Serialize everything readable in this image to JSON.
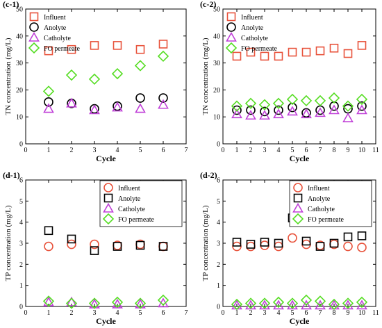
{
  "figure": {
    "colors": {
      "influent": "#e8533c",
      "anolyte": "#000000",
      "catholyte": "#c040d8",
      "fo_permeate": "#55dd22"
    }
  },
  "chart_data": [
    {
      "id": "c-1",
      "panel_label": "(c-1)",
      "type": "scatter",
      "xlabel": "Cycle",
      "ylabel": "TN concentration (mg/L)",
      "xlim": [
        0,
        7
      ],
      "ylim": [
        0,
        50
      ],
      "xticks": [
        0,
        1,
        2,
        3,
        4,
        5,
        6,
        7
      ],
      "yticks": [
        0,
        10,
        20,
        30,
        40,
        50
      ],
      "legend": {
        "position": "top-left",
        "entries": [
          "Influent",
          "Anolyte",
          "Catholyte",
          "FO permeate"
        ]
      },
      "x": [
        1,
        2,
        3,
        4,
        5,
        6
      ],
      "series": [
        {
          "name": "Influent",
          "marker": "square",
          "color": "#e8533c",
          "values": [
            34.5,
            35,
            36.5,
            36.5,
            35,
            37
          ]
        },
        {
          "name": "Anolyte",
          "marker": "circle",
          "color": "#000000",
          "values": [
            15.5,
            15,
            13,
            14,
            17,
            17
          ]
        },
        {
          "name": "Catholyte",
          "marker": "triangle",
          "color": "#c040d8",
          "values": [
            13,
            15,
            12.5,
            13.5,
            13,
            14.5
          ]
        },
        {
          "name": "FO permeate",
          "marker": "diamond",
          "color": "#55dd22",
          "values": [
            19.5,
            25.5,
            24,
            26,
            29,
            32.5
          ]
        }
      ]
    },
    {
      "id": "c-2",
      "panel_label": "(c-2)",
      "type": "scatter",
      "xlabel": "Cycle",
      "ylabel": "TN concentration (mg/L)",
      "xlim": [
        0,
        11
      ],
      "ylim": [
        0,
        50
      ],
      "xticks": [
        0,
        1,
        2,
        3,
        4,
        5,
        6,
        7,
        8,
        9,
        10,
        11
      ],
      "yticks": [
        0,
        10,
        20,
        30,
        40,
        50
      ],
      "legend": {
        "position": "top-left",
        "entries": [
          "Influent",
          "Anolyte",
          "Catholyte",
          "FO permeate"
        ]
      },
      "x": [
        1,
        2,
        3,
        4,
        5,
        6,
        7,
        8,
        9,
        10
      ],
      "series": [
        {
          "name": "Influent",
          "marker": "square",
          "color": "#e8533c",
          "values": [
            32.5,
            34,
            32.5,
            32.5,
            34,
            34,
            34.5,
            35.5,
            33.5,
            36.5
          ]
        },
        {
          "name": "Anolyte",
          "marker": "circle",
          "color": "#000000",
          "values": [
            12.5,
            12.5,
            12,
            12.5,
            13.5,
            11.5,
            12.5,
            14,
            13,
            14
          ]
        },
        {
          "name": "Catholyte",
          "marker": "triangle",
          "color": "#c040d8",
          "values": [
            11,
            10.5,
            10.5,
            11,
            12,
            11,
            11.5,
            12.5,
            9.5,
            12.5
          ]
        },
        {
          "name": "FO permeate",
          "marker": "diamond",
          "color": "#55dd22",
          "values": [
            14,
            15,
            14.5,
            15,
            16.5,
            16,
            16,
            17,
            14,
            16.5
          ]
        }
      ]
    },
    {
      "id": "d-1",
      "panel_label": "(d-1)",
      "type": "scatter",
      "xlabel": "Cycle",
      "ylabel": "TP concentration (mg/L)",
      "xlim": [
        0,
        7
      ],
      "ylim": [
        0,
        6
      ],
      "xticks": [
        0,
        1,
        2,
        3,
        4,
        5,
        6,
        7
      ],
      "yticks": [
        0,
        1,
        2,
        3,
        4,
        5,
        6
      ],
      "legend": {
        "position": "top-right",
        "entries": [
          "Influent",
          "Anolyte",
          "Catholyte",
          "FO permeate"
        ]
      },
      "x": [
        1,
        2,
        3,
        4,
        5,
        6
      ],
      "series": [
        {
          "name": "Influent",
          "marker": "circle",
          "color": "#e8533c",
          "values": [
            2.85,
            2.95,
            2.95,
            2.9,
            2.95,
            2.85
          ]
        },
        {
          "name": "Anolyte",
          "marker": "square",
          "color": "#000000",
          "values": [
            3.6,
            3.2,
            2.65,
            2.85,
            2.9,
            2.85
          ]
        },
        {
          "name": "Catholyte",
          "marker": "triangle",
          "color": "#c040d8",
          "values": [
            0.2,
            0.2,
            0.1,
            0.1,
            0.1,
            0.15
          ]
        },
        {
          "name": "FO permeate",
          "marker": "diamond",
          "color": "#55dd22",
          "values": [
            0.25,
            0.15,
            0.15,
            0.2,
            0.15,
            0.3
          ]
        }
      ]
    },
    {
      "id": "d-2",
      "panel_label": "(d-2)",
      "type": "scatter",
      "xlabel": "Cycle",
      "ylabel": "TP concentration (mg/L)",
      "xlim": [
        0,
        11
      ],
      "ylim": [
        0,
        6
      ],
      "xticks": [
        0,
        1,
        2,
        3,
        4,
        5,
        6,
        7,
        8,
        9,
        10,
        11
      ],
      "yticks": [
        0,
        1,
        2,
        3,
        4,
        5,
        6
      ],
      "legend": {
        "position": "top-right",
        "entries": [
          "Influent",
          "Anolyte",
          "Catholyte",
          "FO permeate"
        ]
      },
      "x": [
        1,
        2,
        3,
        4,
        5,
        6,
        7,
        8,
        9,
        10
      ],
      "series": [
        {
          "name": "Influent",
          "marker": "circle",
          "color": "#e8533c",
          "values": [
            2.85,
            2.85,
            2.9,
            2.85,
            3.25,
            2.95,
            2.9,
            2.95,
            2.85,
            2.8
          ]
        },
        {
          "name": "Anolyte",
          "marker": "square",
          "color": "#000000",
          "values": [
            3.05,
            2.95,
            3.05,
            3.0,
            4.2,
            3.1,
            2.85,
            3.0,
            3.3,
            3.35
          ]
        },
        {
          "name": "Catholyte",
          "marker": "triangle",
          "color": "#c040d8",
          "values": [
            0.05,
            0.05,
            0.05,
            0.05,
            0.05,
            0.05,
            0.05,
            0.05,
            0.05,
            0.05
          ]
        },
        {
          "name": "FO permeate",
          "marker": "diamond",
          "color": "#55dd22",
          "values": [
            0.1,
            0.15,
            0.15,
            0.2,
            0.15,
            0.3,
            0.25,
            0.1,
            0.15,
            0.2
          ]
        }
      ]
    }
  ]
}
